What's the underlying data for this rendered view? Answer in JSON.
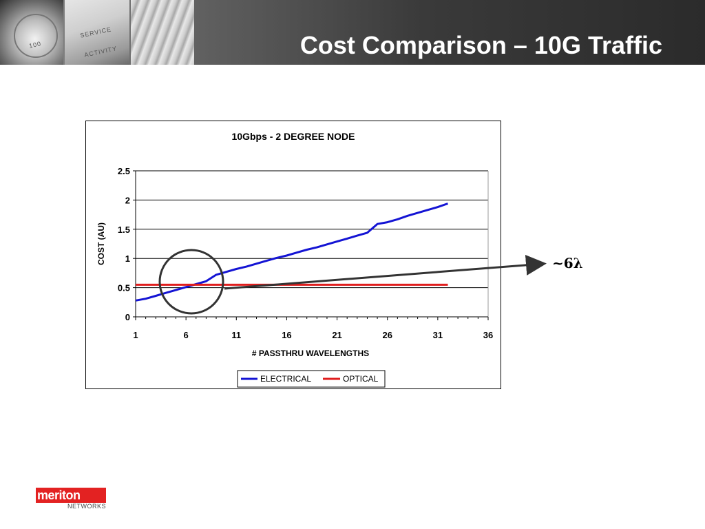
{
  "slide": {
    "title": "Cost Comparison – 10G Traffic",
    "annotation": "~6λ"
  },
  "header_photos": {
    "photo_2_labels": [
      "SERVICE",
      "ACTIVITY"
    ],
    "photo_1_label": "100"
  },
  "logo": {
    "name": "meriton",
    "sub": "NETWORKS",
    "color": "#e32222"
  },
  "colors": {
    "electrical": "#1414d4",
    "optical": "#e01e1e",
    "annotation": "#333333"
  },
  "chart_data": {
    "type": "line",
    "title": "10Gbps - 2 DEGREE NODE",
    "xlabel": "# PASSTHRU WAVELENGTHS",
    "ylabel": "COST (AU)",
    "xlim": [
      1,
      36
    ],
    "ylim": [
      0,
      2.5
    ],
    "xticks": [
      1,
      6,
      11,
      16,
      21,
      26,
      31,
      36
    ],
    "yticks": [
      0,
      0.5,
      1,
      1.5,
      2,
      2.5
    ],
    "ytick_labels": [
      "0",
      "0.5",
      "1",
      "1.5",
      "2",
      "2.5"
    ],
    "grid": "horizontal",
    "legend": "bottom",
    "series": [
      {
        "name": "ELECTRICAL",
        "color": "#1414d4",
        "x": [
          1,
          2,
          3,
          4,
          5,
          6,
          7,
          8,
          9,
          10,
          11,
          12,
          13,
          14,
          15,
          16,
          17,
          18,
          19,
          20,
          21,
          22,
          23,
          24,
          25,
          26,
          27,
          28,
          29,
          30,
          31,
          32
        ],
        "y": [
          0.28,
          0.31,
          0.36,
          0.41,
          0.46,
          0.51,
          0.56,
          0.61,
          0.72,
          0.77,
          0.82,
          0.86,
          0.91,
          0.96,
          1.01,
          1.05,
          1.1,
          1.15,
          1.19,
          1.24,
          1.29,
          1.34,
          1.39,
          1.44,
          1.59,
          1.62,
          1.67,
          1.73,
          1.78,
          1.83,
          1.88,
          1.94
        ]
      },
      {
        "name": "OPTICAL",
        "color": "#e01e1e",
        "x": [
          1,
          32
        ],
        "y": [
          0.55,
          0.55
        ]
      }
    ]
  }
}
